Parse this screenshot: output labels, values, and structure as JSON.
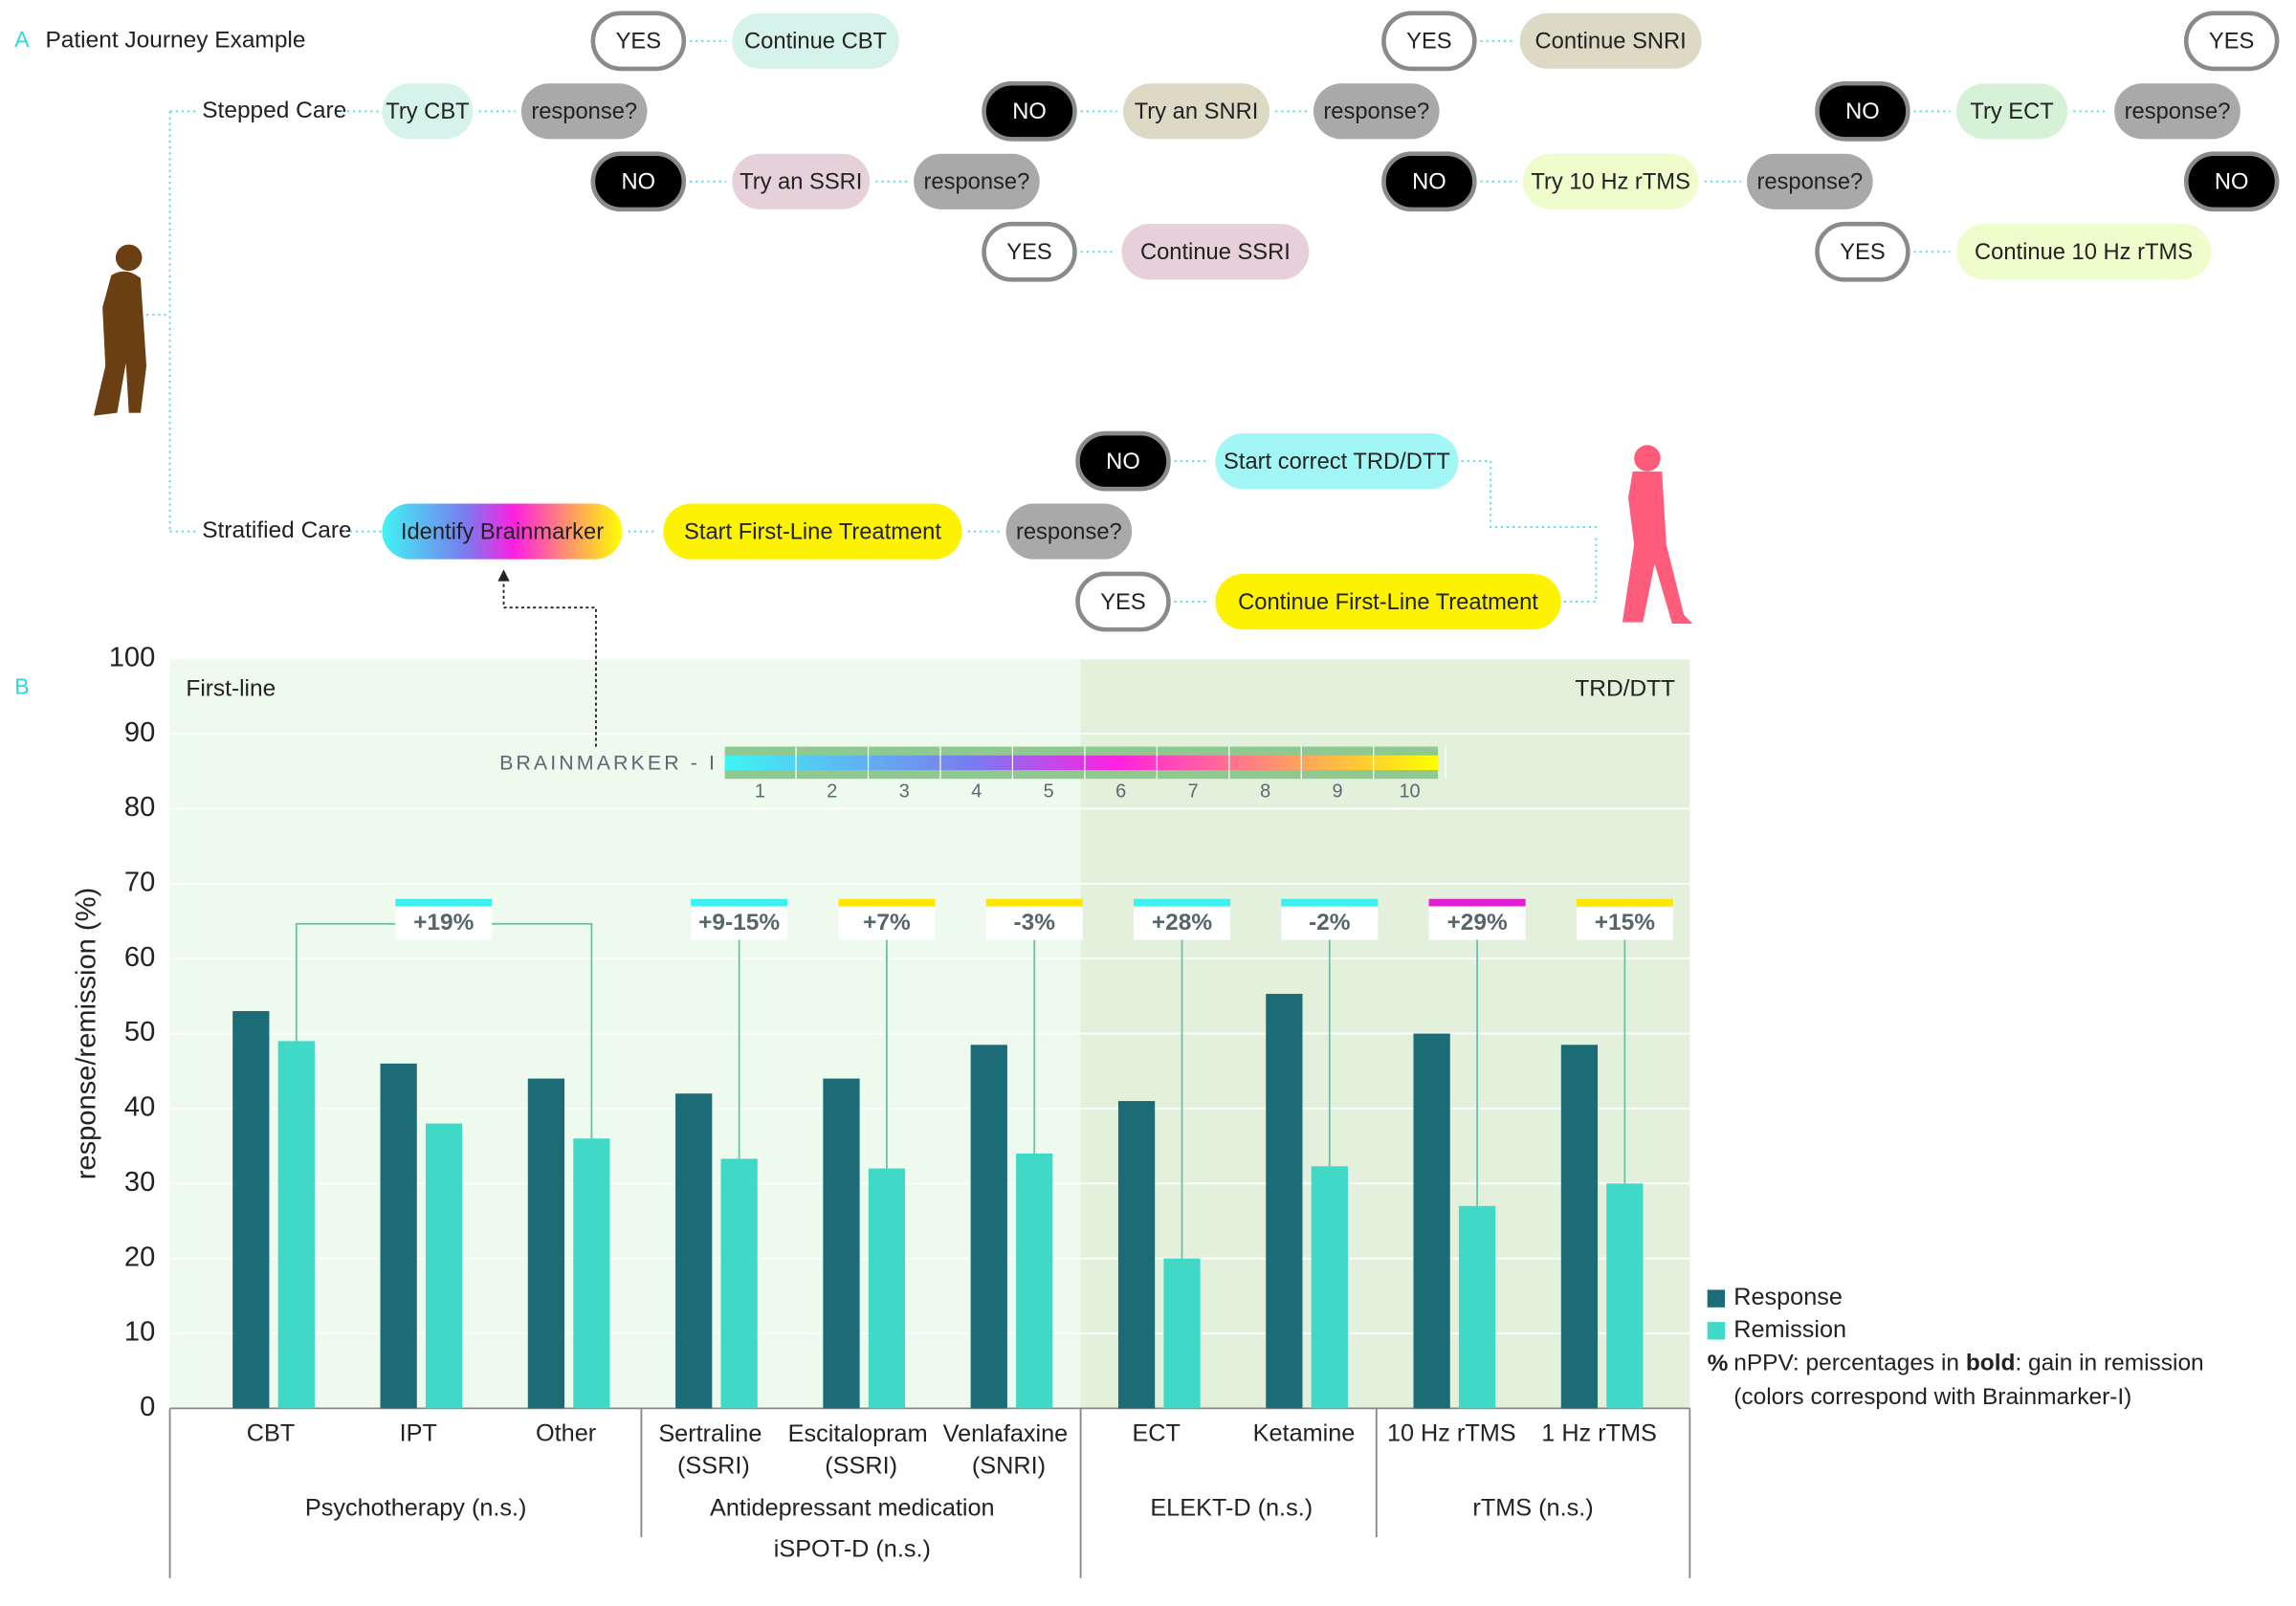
{
  "panel_a": {
    "label": "A",
    "title": "Patient Journey Example",
    "rows": [
      "Stepped Care",
      "Stratified Care"
    ],
    "nodes": [
      {
        "label": "YES",
        "color": "#ffffff"
      },
      {
        "label": "Continue CBT",
        "color": "#d5f3ea"
      },
      {
        "label": "Try CBT",
        "color": "#d5f3ea"
      },
      {
        "label": "response?",
        "color": "#a9a9a9"
      },
      {
        "label": "NO",
        "color": "#000000"
      },
      {
        "label": "Try an SSRI",
        "color": "#e6d0da"
      },
      {
        "label": "response?",
        "color": "#a9a9a9"
      },
      {
        "label": "YES",
        "color": "#ffffff"
      },
      {
        "label": "Continue SSRI",
        "color": "#e6d0da"
      },
      {
        "label": "NO",
        "color": "#000000"
      },
      {
        "label": "Try an SNRI",
        "color": "#dcdac4"
      },
      {
        "label": "response?",
        "color": "#a9a9a9"
      },
      {
        "label": "YES",
        "color": "#ffffff"
      },
      {
        "label": "Continue SNRI",
        "color": "#dcdac4"
      },
      {
        "label": "NO",
        "color": "#000000"
      },
      {
        "label": "Try 10 Hz rTMS",
        "color": "#effccb"
      },
      {
        "label": "response?",
        "color": "#a9a9a9"
      },
      {
        "label": "YES",
        "color": "#ffffff"
      },
      {
        "label": "Continue 10 Hz rTMS",
        "color": "#effccb"
      },
      {
        "label": "NO",
        "color": "#000000"
      },
      {
        "label": "Try ECT",
        "color": "#d5f2d8"
      },
      {
        "label": "response?",
        "color": "#a9a9a9"
      },
      {
        "label": "YES",
        "color": "#ffffff"
      },
      {
        "label": "NO",
        "color": "#000000"
      },
      {
        "label": "Identify Brainmarker"
      },
      {
        "label": "Start First-Line Treatment",
        "color": "#fdf200"
      },
      {
        "label": "response?",
        "color": "#a9a9a9"
      },
      {
        "label": "NO",
        "color": "#000000"
      },
      {
        "label": "Start correct TRD/DTT",
        "color": "#a3f6f6"
      },
      {
        "label": "YES",
        "color": "#ffffff"
      },
      {
        "label": "Continue First-Line Treatment",
        "color": "#fdf200"
      }
    ]
  },
  "chart_data": {
    "type": "bar",
    "panel_label": "B",
    "y_label": "response/remission (%)",
    "categories": [
      "CBT",
      "IPT",
      "Other",
      "Sertraline (SSRI)",
      "Escitalopram (SSRI)",
      "Venlafaxine (SNRI)",
      "ECT",
      "Ketamine",
      "10 Hz rTMS",
      "1 Hz rTMS"
    ],
    "series": [
      {
        "name": "Response",
        "color": "#1c6c78",
        "values": [
          53,
          46,
          44,
          42,
          44,
          48.5,
          41,
          55.3,
          50,
          48.5
        ]
      },
      {
        "name": "Remission",
        "color": "#40d9c7",
        "values": [
          49,
          38,
          36,
          33.3,
          32,
          34,
          20,
          32.3,
          27,
          30
        ]
      }
    ],
    "ylim": [
      0,
      100
    ],
    "yticks": [
      0,
      10,
      20,
      30,
      40,
      50,
      60,
      70,
      80,
      90,
      100
    ],
    "regions": [
      {
        "label": "First-line",
        "color": "#eefaee"
      },
      {
        "label": "TRD/DTT",
        "color": "#e2f0dc"
      }
    ],
    "groups": [
      "Psychotherapy (n.s.)",
      "Antidepressant medication",
      "ELEKT-D (n.s.)",
      "rTMS (n.s.)"
    ],
    "subgroup": "iSPOT-D (n.s.)",
    "annotations": [
      {
        "text": "+19%",
        "color": "#3ff0f0"
      },
      {
        "text": "+9-15%",
        "color": "#3ff0f0"
      },
      {
        "text": "+7%",
        "color": "#ffe600"
      },
      {
        "text": "-3%",
        "color": "#ffe600"
      },
      {
        "text": "+28%",
        "color": "#3ff0f0"
      },
      {
        "text": "-2%",
        "color": "#3ff0f0"
      },
      {
        "text": "+29%",
        "color": "#e020d0"
      },
      {
        "text": "+15%",
        "color": "#ffe600"
      }
    ],
    "brainmarker": {
      "label": "BRAINMARKER - I",
      "ticks": [
        1,
        2,
        3,
        4,
        5,
        6,
        7,
        8,
        9,
        10
      ]
    },
    "legend_note": {
      "symbol": "%",
      "parts": [
        "nPPV: percentages in ",
        "bold",
        ": gain in remission"
      ],
      "line2": "(colors correspond with Brainmarker-I)"
    }
  }
}
